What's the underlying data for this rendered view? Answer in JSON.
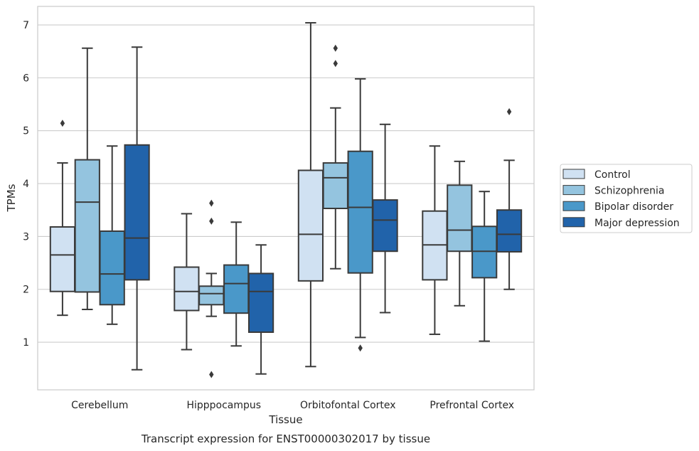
{
  "chart_data": {
    "type": "box",
    "title": "",
    "caption": "Transcript expression for ENST00000302017 by tissue",
    "xlabel": "Tissue",
    "ylabel": "TPMs",
    "ylim": [
      0.1,
      7.35
    ],
    "yticks": [
      1,
      2,
      3,
      4,
      5,
      6,
      7
    ],
    "grid": "horizontal",
    "legend_position": "right",
    "categories": [
      "Cerebellum",
      "Hipppocampus",
      "Orbitofontal Cortex",
      "Prefrontal Cortex"
    ],
    "series": [
      {
        "name": "Control",
        "color": "#d0e1f2",
        "boxes": [
          {
            "whisker_low": 1.51,
            "q1": 1.96,
            "median": 2.65,
            "q3": 3.18,
            "whisker_high": 4.39,
            "outliers": [
              5.14
            ]
          },
          {
            "whisker_low": 0.86,
            "q1": 1.6,
            "median": 1.96,
            "q3": 2.42,
            "whisker_high": 3.43,
            "outliers": []
          },
          {
            "whisker_low": 0.54,
            "q1": 2.16,
            "median": 3.04,
            "q3": 4.25,
            "whisker_high": 7.04,
            "outliers": []
          },
          {
            "whisker_low": 1.15,
            "q1": 2.18,
            "median": 2.84,
            "q3": 3.48,
            "whisker_high": 4.71,
            "outliers": []
          }
        ]
      },
      {
        "name": "Schizophrenia",
        "color": "#94c4df",
        "boxes": [
          {
            "whisker_low": 1.62,
            "q1": 1.95,
            "median": 3.65,
            "q3": 4.45,
            "whisker_high": 6.56,
            "outliers": []
          },
          {
            "whisker_low": 1.49,
            "q1": 1.71,
            "median": 1.92,
            "q3": 2.06,
            "whisker_high": 2.3,
            "outliers": [
              3.63,
              3.29,
              0.39
            ]
          },
          {
            "whisker_low": 2.39,
            "q1": 3.53,
            "median": 4.11,
            "q3": 4.39,
            "whisker_high": 5.43,
            "outliers": [
              6.56,
              6.27
            ]
          },
          {
            "whisker_low": 1.69,
            "q1": 2.72,
            "median": 3.12,
            "q3": 3.97,
            "whisker_high": 4.42,
            "outliers": []
          }
        ]
      },
      {
        "name": "Bipolar disorder",
        "color": "#4a98c9",
        "boxes": [
          {
            "whisker_low": 1.34,
            "q1": 1.71,
            "median": 2.29,
            "q3": 3.1,
            "whisker_high": 4.71,
            "outliers": []
          },
          {
            "whisker_low": 0.93,
            "q1": 1.55,
            "median": 2.11,
            "q3": 2.46,
            "whisker_high": 3.27,
            "outliers": []
          },
          {
            "whisker_low": 1.09,
            "q1": 2.31,
            "median": 3.55,
            "q3": 4.61,
            "whisker_high": 5.98,
            "outliers": [
              0.89
            ]
          },
          {
            "whisker_low": 1.02,
            "q1": 2.22,
            "median": 2.72,
            "q3": 3.19,
            "whisker_high": 3.85,
            "outliers": []
          }
        ]
      },
      {
        "name": "Major depression",
        "color": "#2163aa",
        "boxes": [
          {
            "whisker_low": 0.48,
            "q1": 2.18,
            "median": 2.97,
            "q3": 4.73,
            "whisker_high": 6.58,
            "outliers": []
          },
          {
            "whisker_low": 0.4,
            "q1": 1.19,
            "median": 1.96,
            "q3": 2.3,
            "whisker_high": 2.84,
            "outliers": []
          },
          {
            "whisker_low": 1.56,
            "q1": 2.72,
            "median": 3.31,
            "q3": 3.69,
            "whisker_high": 5.12,
            "outliers": []
          },
          {
            "whisker_low": 2.0,
            "q1": 2.71,
            "median": 3.04,
            "q3": 3.5,
            "whisker_high": 4.44,
            "outliers": [
              5.36
            ]
          }
        ]
      }
    ]
  }
}
